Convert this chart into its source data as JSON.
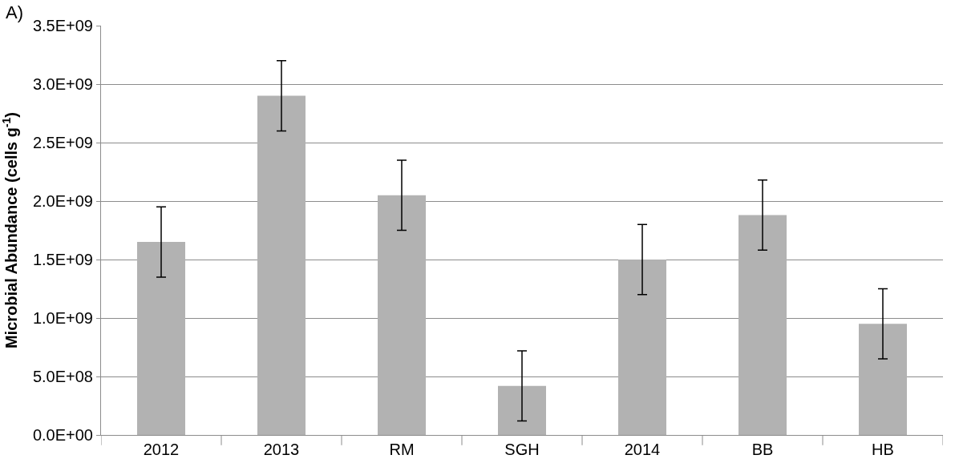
{
  "chart_data": {
    "type": "bar",
    "ylabel": "Microbial Abundance (cells g$^{-1}$)",
    "annotations": [
      "A)"
    ],
    "categories": [
      "2012",
      "2013",
      "RM",
      "SGH",
      "2014",
      "BB",
      "HB"
    ],
    "values": [
      1650000000.0,
      2900000000.0,
      2050000000.0,
      420000000.0,
      1500000000.0,
      1880000000.0,
      950000000.0
    ],
    "errors": [
      300000000.0,
      300000000.0,
      300000000.0,
      300000000.0,
      300000000.0,
      300000000.0,
      300000000.0
    ],
    "color": "#b2b2b2",
    "ylim": [
      0,
      3500000000.0
    ],
    "yticks": [
      {
        "value": 0,
        "label": "0.0E+00"
      },
      {
        "value": 500000000.0,
        "label": "5.0E+08"
      },
      {
        "value": 1000000000.0,
        "label": "1.0E+09"
      },
      {
        "value": 1500000000.0,
        "label": "1.5E+09"
      },
      {
        "value": 2000000000.0,
        "label": "2.0E+09"
      },
      {
        "value": 2500000000.0,
        "label": "2.5E+09"
      },
      {
        "value": 3000000000.0,
        "label": "3.0E+09"
      },
      {
        "value": 3500000000.0,
        "label": "3.5E+09"
      }
    ],
    "grid": "y"
  }
}
